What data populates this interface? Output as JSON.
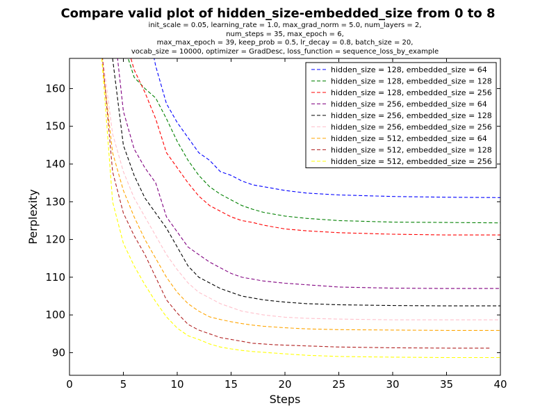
{
  "chart_data": {
    "type": "line",
    "title": "Compare valid plot of hidden_size-embedded_size from 0 to 8",
    "subtitle_lines": [
      "init_scale = 0.05, learning_rate = 1.0, max_grad_norm = 5.0, num_layers = 2,",
      "num_steps = 35, max_epoch = 6,",
      "max_max_epoch = 39, keep_prob = 0.5, lr_decay = 0.8, batch_size = 20,",
      "vocab_size = 10000, optimizer = GradDesc, loss_function = sequence_loss_by_example"
    ],
    "xlabel": "Steps",
    "ylabel": "Perplexity",
    "xlim": [
      0,
      40
    ],
    "ylim": [
      84,
      168
    ],
    "xticks": [
      0,
      5,
      10,
      15,
      20,
      25,
      30,
      35,
      40
    ],
    "yticks": [
      90,
      100,
      110,
      120,
      130,
      140,
      150,
      160
    ],
    "line_style": "dashed",
    "legend_position": "upper right",
    "grid": false,
    "series": [
      {
        "name": "hidden_size = 128, embedded_size = 64",
        "color": "#0000ff",
        "x": [
          7,
          8,
          9,
          10,
          11,
          12,
          13,
          14,
          15,
          16,
          17,
          18,
          19,
          20,
          22,
          25,
          30,
          35,
          40
        ],
        "y": [
          180,
          166,
          156,
          151,
          147,
          143,
          141,
          138,
          137,
          135.5,
          134.5,
          134,
          133.5,
          133,
          132.3,
          131.8,
          131.4,
          131.2,
          131.1
        ]
      },
      {
        "name": "hidden_size = 128, embedded_size = 128",
        "color": "#008000",
        "x": [
          5,
          6,
          7,
          8,
          9,
          10,
          11,
          12,
          13,
          14,
          15,
          16,
          17,
          18,
          19,
          20,
          22,
          25,
          30,
          35,
          40
        ],
        "y": [
          172,
          163,
          160,
          157.5,
          152,
          146,
          141,
          137,
          134,
          132,
          130.5,
          129,
          128,
          127.2,
          126.7,
          126.2,
          125.6,
          125,
          124.6,
          124.5,
          124.4
        ]
      },
      {
        "name": "hidden_size = 128, embedded_size = 256",
        "color": "#ff0000",
        "x": [
          5,
          6,
          7,
          8,
          9,
          10,
          11,
          12,
          13,
          14,
          15,
          16,
          17,
          18,
          19,
          20,
          22,
          25,
          30,
          35,
          40
        ],
        "y": [
          175,
          165,
          159,
          152,
          143,
          139,
          135,
          131.5,
          129,
          127.5,
          126,
          125,
          124.5,
          123.8,
          123.3,
          122.8,
          122.3,
          121.8,
          121.4,
          121.2,
          121.2
        ]
      },
      {
        "name": "hidden_size = 256, embedded_size = 64",
        "color": "#800080",
        "x": [
          4,
          5,
          6,
          7,
          8,
          9,
          10,
          11,
          12,
          13,
          14,
          15,
          16,
          17,
          18,
          19,
          20,
          22,
          25,
          30,
          35,
          40
        ],
        "y": [
          180,
          154,
          144,
          139,
          135,
          126,
          122,
          118,
          116,
          114,
          112.5,
          111,
          110,
          109.5,
          109,
          108.7,
          108.4,
          108,
          107.4,
          107.1,
          107,
          107
        ]
      },
      {
        "name": "hidden_size = 256, embedded_size = 128",
        "color": "#000000",
        "x": [
          4,
          5,
          6,
          7,
          8,
          9,
          10,
          11,
          12,
          13,
          14,
          15,
          16,
          17,
          18,
          19,
          20,
          22,
          25,
          30,
          35,
          40
        ],
        "y": [
          168,
          145,
          137,
          131,
          127,
          123,
          118,
          113,
          110,
          108.5,
          107,
          106,
          105,
          104.5,
          104,
          103.7,
          103.4,
          103,
          102.7,
          102.5,
          102.4,
          102.4
        ]
      },
      {
        "name": "hidden_size = 256, embedded_size = 256",
        "color": "#ffc0cb",
        "x": [
          3,
          4,
          5,
          6,
          7,
          8,
          9,
          10,
          11,
          12,
          13,
          14,
          15,
          16,
          17,
          18,
          19,
          20,
          22,
          25,
          30,
          35,
          40
        ],
        "y": [
          170,
          148,
          138,
          131,
          126,
          121,
          116,
          112,
          108.5,
          106,
          104.5,
          103,
          102,
          101,
          100.5,
          100,
          99.7,
          99.4,
          99.1,
          98.9,
          98.7,
          98.7,
          98.7
        ]
      },
      {
        "name": "hidden_size = 512, embedded_size = 64",
        "color": "#ffa500",
        "x": [
          3,
          4,
          5,
          6,
          7,
          8,
          9,
          10,
          11,
          12,
          13,
          14,
          15,
          16,
          17,
          18,
          19,
          20,
          22,
          25,
          30,
          35,
          40
        ],
        "y": [
          168,
          143,
          133,
          126,
          120,
          115,
          110,
          106,
          103,
          101,
          99.5,
          98.8,
          98.2,
          97.7,
          97.3,
          97,
          96.8,
          96.6,
          96.3,
          96.1,
          96,
          95.9,
          95.9
        ]
      },
      {
        "name": "hidden_size = 512, embedded_size = 128",
        "color": "#b22222",
        "x": [
          3,
          4,
          5,
          6,
          7,
          8,
          9,
          10,
          11,
          12,
          13,
          14,
          15,
          16,
          17,
          18,
          19,
          20,
          22,
          25,
          30,
          35,
          39
        ],
        "y": [
          170,
          138,
          127,
          121,
          116,
          110,
          104,
          100.5,
          97.5,
          96,
          95,
          94,
          93.5,
          93,
          92.5,
          92.3,
          92.1,
          92,
          91.8,
          91.5,
          91.3,
          91.2,
          91.2
        ]
      },
      {
        "name": "hidden_size = 512, embedded_size = 256",
        "color": "#ffff00",
        "x": [
          3,
          4,
          5,
          6,
          7,
          8,
          9,
          10,
          11,
          12,
          13,
          14,
          15,
          16,
          17,
          18,
          19,
          20,
          22,
          25,
          30,
          35,
          40
        ],
        "y": [
          168,
          130,
          119,
          113,
          108,
          103.5,
          99.5,
          96.5,
          94.5,
          93.5,
          92.3,
          91.5,
          91,
          90.6,
          90.3,
          90.1,
          89.9,
          89.7,
          89.3,
          89,
          88.8,
          88.7,
          88.7
        ]
      }
    ]
  }
}
